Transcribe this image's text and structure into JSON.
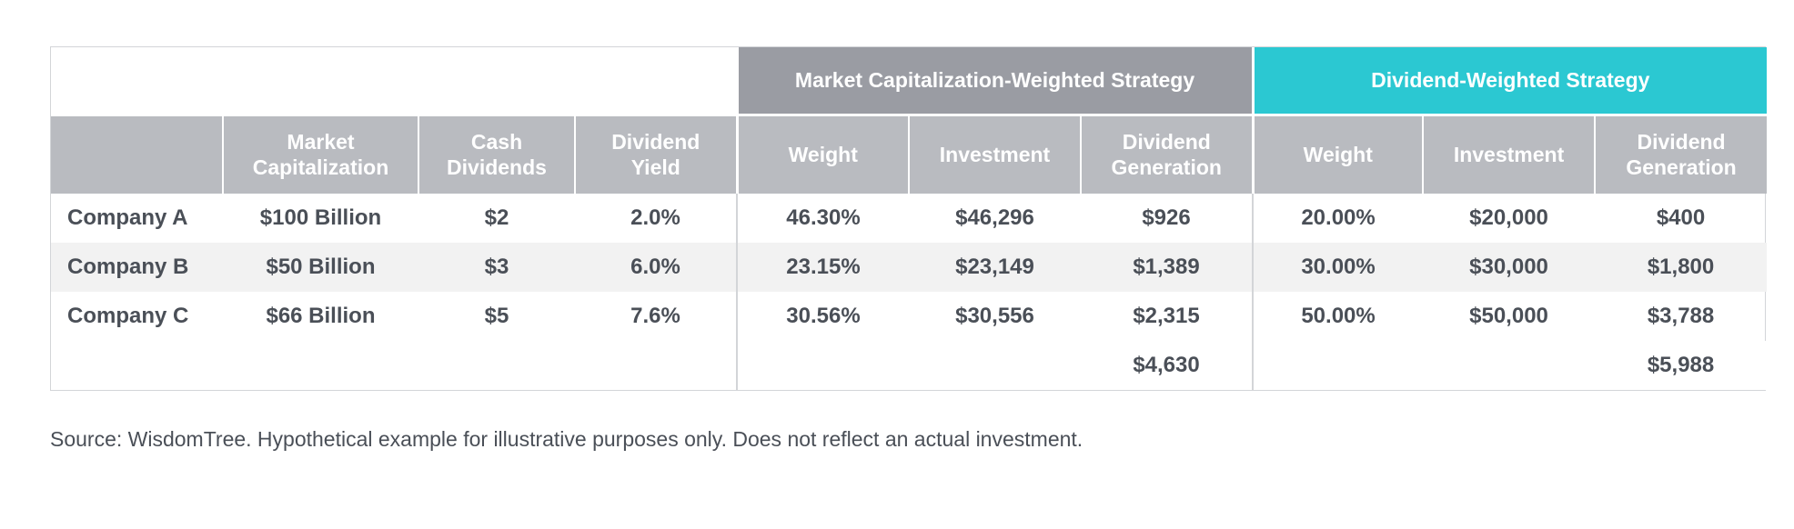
{
  "groups": {
    "market_cap": "Market Capitalization-Weighted Strategy",
    "dividend": "Dividend-Weighted Strategy"
  },
  "headers": {
    "market_cap_1": "Market",
    "market_cap_2": "Capitalization",
    "cash_div_1": "Cash",
    "cash_div_2": "Dividends",
    "div_yield_1": "Dividend",
    "div_yield_2": "Yield",
    "weight": "Weight",
    "investment": "Investment",
    "div_gen_1": "Dividend",
    "div_gen_2": "Generation"
  },
  "rows": [
    {
      "company": "Company A",
      "market_cap": "$100 Billion",
      "cash_dividends": "$2",
      "dividend_yield": "2.0%",
      "mc_weight": "46.30%",
      "mc_investment": "$46,296",
      "mc_div_gen": "$926",
      "dw_weight": "20.00%",
      "dw_investment": "$20,000",
      "dw_div_gen": "$400"
    },
    {
      "company": "Company B",
      "market_cap": "$50 Billion",
      "cash_dividends": "$3",
      "dividend_yield": "6.0%",
      "mc_weight": "23.15%",
      "mc_investment": "$23,149",
      "mc_div_gen": "$1,389",
      "dw_weight": "30.00%",
      "dw_investment": "$30,000",
      "dw_div_gen": "$1,800"
    },
    {
      "company": "Company C",
      "market_cap": "$66 Billion",
      "cash_dividends": "$5",
      "dividend_yield": "7.6%",
      "mc_weight": "30.56%",
      "mc_investment": "$30,556",
      "mc_div_gen": "$2,315",
      "dw_weight": "50.00%",
      "dw_investment": "$50,000",
      "dw_div_gen": "$3,788"
    }
  ],
  "totals": {
    "mc_div_gen": "$4,630",
    "dw_div_gen": "$5,988"
  },
  "source": "Source: WisdomTree. Hypothetical example for illustrative purposes only. Does not reflect an actual investment.",
  "colors": {
    "group_market_cap": "#9a9ca3",
    "group_dividend": "#2bc8d2",
    "header_bg": "#b9bbc0",
    "row_shade": "#f2f2f2",
    "text": "#4a4f57"
  }
}
